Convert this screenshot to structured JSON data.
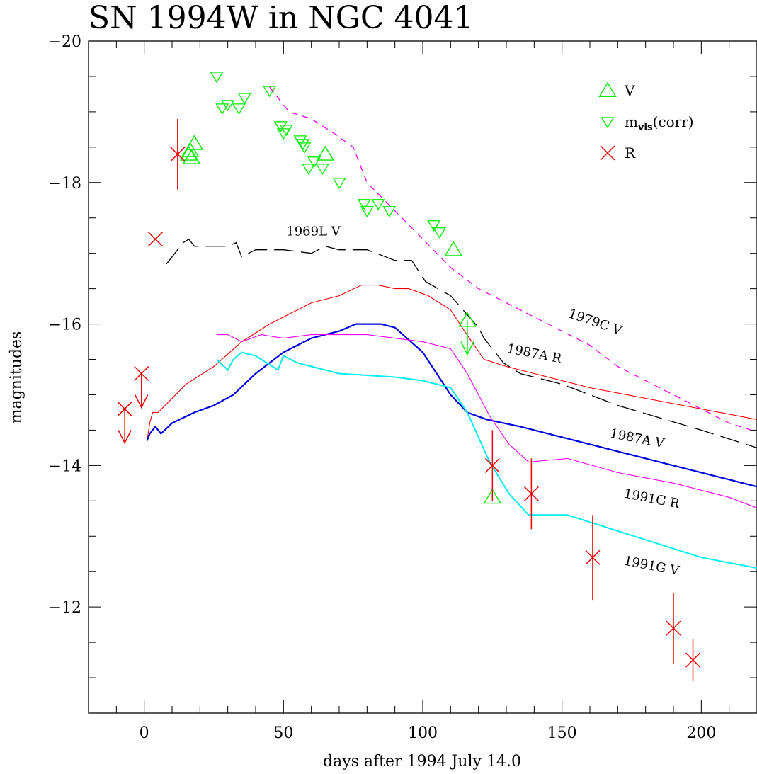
{
  "chart_data": {
    "type": "scatter",
    "title": "SN 1994W in NGC 4041",
    "xlabel": "days after 1994 July 14.0",
    "ylabel": "magnitudes",
    "xlim": [
      -20,
      220
    ],
    "ylim": [
      -10.5,
      -20
    ],
    "y_inverted": true,
    "xticks": [
      0,
      50,
      100,
      150,
      200
    ],
    "yticks": [
      -12,
      -14,
      -16,
      -18,
      -20
    ],
    "grid": false,
    "legend_position": "top-right",
    "colors": {
      "V": "#00ee00",
      "mvis": "#00ee00",
      "R": "#ee0000",
      "t1969L_V": "#000000",
      "t1979C_V": "#ee00ee",
      "t1987A_R": "#ee0000",
      "t1987A_V": "#0000dd",
      "t1991G_R": "#ee00ee",
      "t1991G_V": "#00eeee"
    },
    "legend": [
      {
        "key": "V",
        "label": "V",
        "marker": "triangle-up"
      },
      {
        "key": "mvis",
        "label": "m",
        "sub": "vis",
        "suffix": "(corr)",
        "marker": "triangle-down"
      },
      {
        "key": "R",
        "label": "R",
        "marker": "cross"
      }
    ],
    "series": [
      {
        "name": "V",
        "marker": "triangle-up",
        "points": [
          {
            "x": 16,
            "y": -18.4
          },
          {
            "x": 17,
            "y": -18.35
          },
          {
            "x": 18,
            "y": -18.55
          },
          {
            "x": 16.5,
            "y": -18.45
          },
          {
            "x": 111,
            "y": -17.05
          },
          {
            "x": 65,
            "y": -18.4
          },
          {
            "x": 125,
            "y": -13.55
          }
        ],
        "upper_limits": [
          {
            "x": 116,
            "y": -16.05
          }
        ]
      },
      {
        "name": "m_vis(corr)",
        "marker": "triangle-down",
        "points": [
          {
            "x": 26,
            "y": -19.5
          },
          {
            "x": 28,
            "y": -19.05
          },
          {
            "x": 30,
            "y": -19.1
          },
          {
            "x": 34,
            "y": -19.05
          },
          {
            "x": 36,
            "y": -19.2
          },
          {
            "x": 45,
            "y": -19.3
          },
          {
            "x": 49,
            "y": -18.8
          },
          {
            "x": 50,
            "y": -18.7
          },
          {
            "x": 51,
            "y": -18.75
          },
          {
            "x": 56,
            "y": -18.6
          },
          {
            "x": 57,
            "y": -18.55
          },
          {
            "x": 57.5,
            "y": -18.5
          },
          {
            "x": 59,
            "y": -18.2
          },
          {
            "x": 61,
            "y": -18.3
          },
          {
            "x": 64,
            "y": -18.2
          },
          {
            "x": 70,
            "y": -18.0
          },
          {
            "x": 79,
            "y": -17.7
          },
          {
            "x": 80,
            "y": -17.6
          },
          {
            "x": 84,
            "y": -17.7
          },
          {
            "x": 88,
            "y": -17.6
          },
          {
            "x": 104,
            "y": -17.4
          },
          {
            "x": 106,
            "y": -17.3
          }
        ]
      },
      {
        "name": "R",
        "marker": "cross",
        "points": [
          {
            "x": 12,
            "y": -18.4,
            "err": 0.5
          },
          {
            "x": 4,
            "y": -17.2
          },
          {
            "x": 125,
            "y": -14.0,
            "err": 0.5
          },
          {
            "x": 139,
            "y": -13.6,
            "err": 0.5
          },
          {
            "x": 161,
            "y": -12.7,
            "err": 0.6
          },
          {
            "x": 190,
            "y": -11.7,
            "err": 0.5
          },
          {
            "x": 197,
            "y": -11.25,
            "err": 0.3
          }
        ],
        "upper_limits": [
          {
            "x": -7,
            "y": -14.8
          },
          {
            "x": -1,
            "y": -15.3
          }
        ]
      }
    ],
    "templates": [
      {
        "name": "1979C V",
        "key": "t1979C_V",
        "style": "short-dash",
        "label_at": {
          "x": 152,
          "y": -16.1
        },
        "label_rotate": 19,
        "points": [
          [
            45,
            -19.35
          ],
          [
            52,
            -19.0
          ],
          [
            60,
            -18.9
          ],
          [
            68,
            -18.7
          ],
          [
            75,
            -18.5
          ],
          [
            80,
            -18.0
          ],
          [
            90,
            -17.6
          ],
          [
            100,
            -17.2
          ],
          [
            110,
            -16.8
          ],
          [
            120,
            -16.5
          ],
          [
            130,
            -16.3
          ],
          [
            140,
            -16.1
          ],
          [
            150,
            -15.9
          ],
          [
            160,
            -15.7
          ],
          [
            170,
            -15.4
          ],
          [
            180,
            -15.2
          ],
          [
            190,
            -15.0
          ],
          [
            200,
            -14.8
          ],
          [
            210,
            -14.6
          ],
          [
            218,
            -14.5
          ]
        ]
      },
      {
        "name": "1969L V",
        "key": "t1969L_V",
        "style": "long-dash",
        "label_at": {
          "x": 51,
          "y": -17.25
        },
        "label_rotate": 0,
        "points": [
          [
            8,
            -16.85
          ],
          [
            14,
            -17.15
          ],
          [
            16,
            -17.2
          ],
          [
            18,
            -17.1
          ],
          [
            30,
            -17.1
          ],
          [
            33,
            -17.15
          ],
          [
            35,
            -16.95
          ],
          [
            40,
            -17.05
          ],
          [
            50,
            -17.05
          ],
          [
            60,
            -17.0
          ],
          [
            65,
            -17.1
          ],
          [
            70,
            -17.05
          ],
          [
            80,
            -17.05
          ],
          [
            90,
            -16.9
          ],
          [
            96,
            -16.9
          ],
          [
            101,
            -16.6
          ],
          [
            110,
            -16.4
          ],
          [
            120,
            -15.95
          ],
          [
            122,
            -15.8
          ],
          [
            129,
            -15.45
          ],
          [
            135,
            -15.3
          ],
          [
            150,
            -15.15
          ],
          [
            170,
            -14.85
          ],
          [
            200,
            -14.5
          ],
          [
            220,
            -14.25
          ]
        ]
      },
      {
        "name": "1987A R",
        "key": "t1987A_R",
        "style": "solid",
        "label_at": {
          "x": 130,
          "y": -15.6
        },
        "label_rotate": 11,
        "points": [
          [
            1,
            -14.35
          ],
          [
            2,
            -14.6
          ],
          [
            3,
            -14.75
          ],
          [
            5,
            -14.75
          ],
          [
            10,
            -14.95
          ],
          [
            15,
            -15.15
          ],
          [
            25,
            -15.4
          ],
          [
            35,
            -15.75
          ],
          [
            45,
            -16.0
          ],
          [
            50,
            -16.1
          ],
          [
            60,
            -16.3
          ],
          [
            70,
            -16.4
          ],
          [
            78,
            -16.55
          ],
          [
            84,
            -16.55
          ],
          [
            90,
            -16.5
          ],
          [
            95,
            -16.5
          ],
          [
            102,
            -16.4
          ],
          [
            110,
            -16.2
          ],
          [
            115,
            -15.9
          ],
          [
            122,
            -15.5
          ],
          [
            130,
            -15.4
          ],
          [
            140,
            -15.3
          ],
          [
            160,
            -15.1
          ],
          [
            180,
            -14.95
          ],
          [
            200,
            -14.8
          ],
          [
            220,
            -14.65
          ]
        ]
      },
      {
        "name": "1987A V",
        "key": "t1987A_V",
        "style": "solid-thick",
        "label_at": {
          "x": 167,
          "y": -14.4
        },
        "label_rotate": 11,
        "points": [
          [
            1,
            -14.35
          ],
          [
            2,
            -14.45
          ],
          [
            4,
            -14.55
          ],
          [
            6,
            -14.45
          ],
          [
            10,
            -14.6
          ],
          [
            18,
            -14.75
          ],
          [
            25,
            -14.85
          ],
          [
            32,
            -15.0
          ],
          [
            40,
            -15.3
          ],
          [
            50,
            -15.6
          ],
          [
            55,
            -15.7
          ],
          [
            60,
            -15.8
          ],
          [
            70,
            -15.9
          ],
          [
            76,
            -16.0
          ],
          [
            85,
            -16.0
          ],
          [
            90,
            -15.95
          ],
          [
            100,
            -15.6
          ],
          [
            110,
            -15.0
          ],
          [
            116,
            -14.75
          ],
          [
            123,
            -14.65
          ],
          [
            135,
            -14.55
          ],
          [
            150,
            -14.4
          ],
          [
            170,
            -14.2
          ],
          [
            190,
            -14.0
          ],
          [
            210,
            -13.8
          ],
          [
            220,
            -13.7
          ]
        ]
      },
      {
        "name": "1991G R",
        "key": "t1991G_R",
        "style": "solid",
        "label_at": {
          "x": 172,
          "y": -13.55
        },
        "label_rotate": 11,
        "points": [
          [
            26,
            -15.85
          ],
          [
            30,
            -15.85
          ],
          [
            35,
            -15.75
          ],
          [
            42,
            -15.85
          ],
          [
            50,
            -15.8
          ],
          [
            60,
            -15.85
          ],
          [
            70,
            -15.85
          ],
          [
            80,
            -15.85
          ],
          [
            90,
            -15.8
          ],
          [
            100,
            -15.75
          ],
          [
            110,
            -15.65
          ],
          [
            116,
            -15.3
          ],
          [
            124,
            -14.7
          ],
          [
            131,
            -14.3
          ],
          [
            138,
            -14.05
          ],
          [
            152,
            -14.1
          ],
          [
            170,
            -13.9
          ],
          [
            190,
            -13.75
          ],
          [
            210,
            -13.55
          ],
          [
            220,
            -13.4
          ]
        ]
      },
      {
        "name": "1991G V",
        "key": "t1991G_V",
        "style": "solid-medium",
        "label_at": {
          "x": 172,
          "y": -12.6
        },
        "label_rotate": 11,
        "points": [
          [
            26,
            -15.5
          ],
          [
            30,
            -15.35
          ],
          [
            32,
            -15.5
          ],
          [
            35,
            -15.6
          ],
          [
            40,
            -15.55
          ],
          [
            44,
            -15.45
          ],
          [
            48,
            -15.35
          ],
          [
            50,
            -15.55
          ],
          [
            55,
            -15.45
          ],
          [
            65,
            -15.35
          ],
          [
            70,
            -15.3
          ],
          [
            90,
            -15.25
          ],
          [
            100,
            -15.2
          ],
          [
            110,
            -15.1
          ],
          [
            116,
            -14.75
          ],
          [
            124,
            -14.05
          ],
          [
            131,
            -13.6
          ],
          [
            138,
            -13.3
          ],
          [
            142,
            -13.3
          ],
          [
            152,
            -13.3
          ],
          [
            180,
            -12.95
          ],
          [
            200,
            -12.7
          ],
          [
            220,
            -12.55
          ]
        ]
      }
    ]
  }
}
